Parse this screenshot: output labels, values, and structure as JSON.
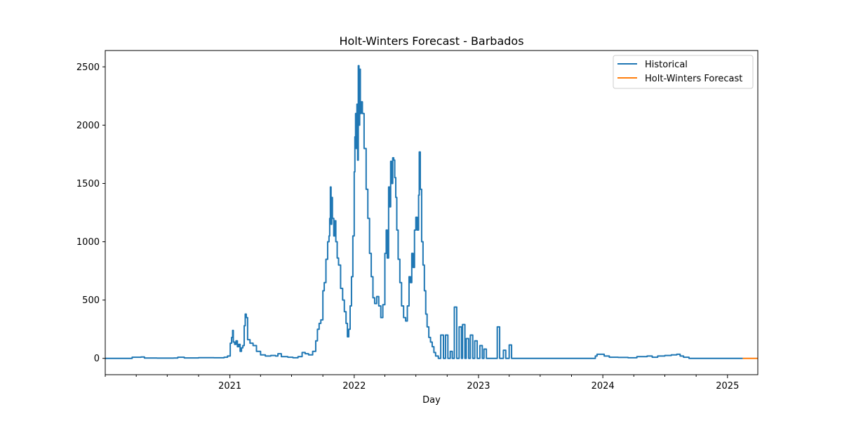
{
  "chart_data": {
    "type": "line",
    "title": "Holt-Winters Forecast - Barbados",
    "xlabel": "Day",
    "ylabel": "",
    "x_axis_type": "date",
    "xlim": [
      "2020-01-01",
      "2025-03-31"
    ],
    "ylim": [
      -140,
      2640
    ],
    "y_ticks": [
      0,
      500,
      1000,
      1500,
      2000,
      2500
    ],
    "x_ticks": [
      {
        "date": "2021-01-01",
        "label": "2021"
      },
      {
        "date": "2022-01-01",
        "label": "2022"
      },
      {
        "date": "2023-01-01",
        "label": "2023"
      },
      {
        "date": "2024-01-01",
        "label": "2024"
      },
      {
        "date": "2025-01-01",
        "label": "2025"
      }
    ],
    "grid": false,
    "legend": {
      "position": "top-right"
    },
    "series": [
      {
        "name": "Historical",
        "color": "#1f77b4",
        "step": "post",
        "points": [
          [
            "2020-01-01",
            0
          ],
          [
            "2020-03-10",
            0
          ],
          [
            "2020-03-20",
            10
          ],
          [
            "2020-04-15",
            12
          ],
          [
            "2020-04-25",
            3
          ],
          [
            "2020-06-01",
            2
          ],
          [
            "2020-07-20",
            3
          ],
          [
            "2020-08-01",
            10
          ],
          [
            "2020-08-20",
            4
          ],
          [
            "2020-10-01",
            6
          ],
          [
            "2020-11-15",
            5
          ],
          [
            "2020-12-15",
            10
          ],
          [
            "2020-12-25",
            20
          ],
          [
            "2021-01-02",
            130
          ],
          [
            "2021-01-06",
            180
          ],
          [
            "2021-01-09",
            240
          ],
          [
            "2021-01-11",
            140
          ],
          [
            "2021-01-15",
            120
          ],
          [
            "2021-01-19",
            150
          ],
          [
            "2021-01-23",
            100
          ],
          [
            "2021-01-27",
            120
          ],
          [
            "2021-01-31",
            60
          ],
          [
            "2021-02-04",
            90
          ],
          [
            "2021-02-08",
            110
          ],
          [
            "2021-02-12",
            280
          ],
          [
            "2021-02-15",
            380
          ],
          [
            "2021-02-18",
            350
          ],
          [
            "2021-02-22",
            160
          ],
          [
            "2021-03-01",
            130
          ],
          [
            "2021-03-10",
            110
          ],
          [
            "2021-03-20",
            60
          ],
          [
            "2021-04-01",
            30
          ],
          [
            "2021-04-15",
            20
          ],
          [
            "2021-05-01",
            25
          ],
          [
            "2021-05-15",
            20
          ],
          [
            "2021-05-22",
            40
          ],
          [
            "2021-06-01",
            15
          ],
          [
            "2021-06-20",
            10
          ],
          [
            "2021-07-05",
            5
          ],
          [
            "2021-07-20",
            15
          ],
          [
            "2021-08-01",
            50
          ],
          [
            "2021-08-10",
            40
          ],
          [
            "2021-08-20",
            30
          ],
          [
            "2021-09-01",
            60
          ],
          [
            "2021-09-10",
            150
          ],
          [
            "2021-09-15",
            250
          ],
          [
            "2021-09-20",
            300
          ],
          [
            "2021-09-25",
            330
          ],
          [
            "2021-10-01",
            580
          ],
          [
            "2021-10-05",
            650
          ],
          [
            "2021-10-10",
            850
          ],
          [
            "2021-10-15",
            1000
          ],
          [
            "2021-10-19",
            1050
          ],
          [
            "2021-10-21",
            1200
          ],
          [
            "2021-10-23",
            1470
          ],
          [
            "2021-10-25",
            1150
          ],
          [
            "2021-10-27",
            1380
          ],
          [
            "2021-10-29",
            1200
          ],
          [
            "2021-11-02",
            1050
          ],
          [
            "2021-11-05",
            1180
          ],
          [
            "2021-11-08",
            1000
          ],
          [
            "2021-11-12",
            860
          ],
          [
            "2021-11-16",
            800
          ],
          [
            "2021-11-22",
            600
          ],
          [
            "2021-11-28",
            500
          ],
          [
            "2021-12-03",
            400
          ],
          [
            "2021-12-08",
            300
          ],
          [
            "2021-12-12",
            185
          ],
          [
            "2021-12-16",
            250
          ],
          [
            "2021-12-20",
            450
          ],
          [
            "2021-12-24",
            700
          ],
          [
            "2021-12-28",
            1050
          ],
          [
            "2022-01-01",
            1600
          ],
          [
            "2022-01-03",
            1900
          ],
          [
            "2022-01-05",
            2100
          ],
          [
            "2022-01-07",
            1800
          ],
          [
            "2022-01-09",
            2180
          ],
          [
            "2022-01-11",
            1700
          ],
          [
            "2022-01-13",
            2510
          ],
          [
            "2022-01-15",
            2000
          ],
          [
            "2022-01-17",
            2480
          ],
          [
            "2022-01-19",
            2100
          ],
          [
            "2022-01-21",
            2200
          ],
          [
            "2022-01-25",
            2100
          ],
          [
            "2022-01-30",
            1800
          ],
          [
            "2022-02-05",
            1450
          ],
          [
            "2022-02-10",
            1200
          ],
          [
            "2022-02-15",
            900
          ],
          [
            "2022-02-20",
            700
          ],
          [
            "2022-02-25",
            520
          ],
          [
            "2022-03-02",
            470
          ],
          [
            "2022-03-08",
            530
          ],
          [
            "2022-03-14",
            450
          ],
          [
            "2022-03-20",
            350
          ],
          [
            "2022-03-26",
            460
          ],
          [
            "2022-04-01",
            900
          ],
          [
            "2022-04-05",
            1100
          ],
          [
            "2022-04-08",
            860
          ],
          [
            "2022-04-12",
            1470
          ],
          [
            "2022-04-15",
            1300
          ],
          [
            "2022-04-18",
            1690
          ],
          [
            "2022-04-21",
            1500
          ],
          [
            "2022-04-24",
            1720
          ],
          [
            "2022-04-27",
            1700
          ],
          [
            "2022-04-30",
            1550
          ],
          [
            "2022-05-03",
            1380
          ],
          [
            "2022-05-06",
            1100
          ],
          [
            "2022-05-10",
            850
          ],
          [
            "2022-05-15",
            650
          ],
          [
            "2022-05-20",
            450
          ],
          [
            "2022-05-26",
            350
          ],
          [
            "2022-06-01",
            320
          ],
          [
            "2022-06-06",
            450
          ],
          [
            "2022-06-11",
            700
          ],
          [
            "2022-06-15",
            650
          ],
          [
            "2022-06-19",
            900
          ],
          [
            "2022-06-23",
            780
          ],
          [
            "2022-06-27",
            1100
          ],
          [
            "2022-07-01",
            1210
          ],
          [
            "2022-07-05",
            1100
          ],
          [
            "2022-07-09",
            1400
          ],
          [
            "2022-07-11",
            1770
          ],
          [
            "2022-07-14",
            1450
          ],
          [
            "2022-07-18",
            1000
          ],
          [
            "2022-07-22",
            800
          ],
          [
            "2022-07-26",
            580
          ],
          [
            "2022-07-30",
            380
          ],
          [
            "2022-08-03",
            270
          ],
          [
            "2022-08-08",
            180
          ],
          [
            "2022-08-13",
            140
          ],
          [
            "2022-08-18",
            100
          ],
          [
            "2022-08-23",
            50
          ],
          [
            "2022-08-28",
            20
          ],
          [
            "2022-09-05",
            0
          ],
          [
            "2022-09-12",
            200
          ],
          [
            "2022-09-20",
            0
          ],
          [
            "2022-09-26",
            200
          ],
          [
            "2022-10-03",
            0
          ],
          [
            "2022-10-10",
            60
          ],
          [
            "2022-10-16",
            0
          ],
          [
            "2022-10-22",
            440
          ],
          [
            "2022-10-29",
            0
          ],
          [
            "2022-11-05",
            270
          ],
          [
            "2022-11-12",
            0
          ],
          [
            "2022-11-15",
            290
          ],
          [
            "2022-11-22",
            0
          ],
          [
            "2022-11-26",
            170
          ],
          [
            "2022-12-03",
            0
          ],
          [
            "2022-12-08",
            200
          ],
          [
            "2022-12-15",
            0
          ],
          [
            "2022-12-21",
            150
          ],
          [
            "2022-12-28",
            0
          ],
          [
            "2023-01-05",
            110
          ],
          [
            "2023-01-12",
            0
          ],
          [
            "2023-01-17",
            80
          ],
          [
            "2023-01-24",
            0
          ],
          [
            "2023-02-25",
            270
          ],
          [
            "2023-03-04",
            0
          ],
          [
            "2023-03-15",
            70
          ],
          [
            "2023-03-22",
            0
          ],
          [
            "2023-04-01",
            115
          ],
          [
            "2023-04-08",
            0
          ],
          [
            "2023-12-01",
            0
          ],
          [
            "2023-12-10",
            20
          ],
          [
            "2023-12-15",
            35
          ],
          [
            "2024-01-05",
            20
          ],
          [
            "2024-01-20",
            10
          ],
          [
            "2024-02-15",
            8
          ],
          [
            "2024-03-15",
            5
          ],
          [
            "2024-04-10",
            15
          ],
          [
            "2024-05-10",
            20
          ],
          [
            "2024-05-25",
            10
          ],
          [
            "2024-06-10",
            20
          ],
          [
            "2024-07-01",
            25
          ],
          [
            "2024-07-20",
            30
          ],
          [
            "2024-08-05",
            35
          ],
          [
            "2024-08-15",
            20
          ],
          [
            "2024-08-25",
            10
          ],
          [
            "2024-09-10",
            0
          ],
          [
            "2025-02-15",
            0
          ]
        ]
      },
      {
        "name": "Holt-Winters Forecast",
        "color": "#ff7f0e",
        "step": "none",
        "points": [
          [
            "2025-02-15",
            0
          ],
          [
            "2025-03-31",
            0
          ]
        ]
      }
    ]
  }
}
